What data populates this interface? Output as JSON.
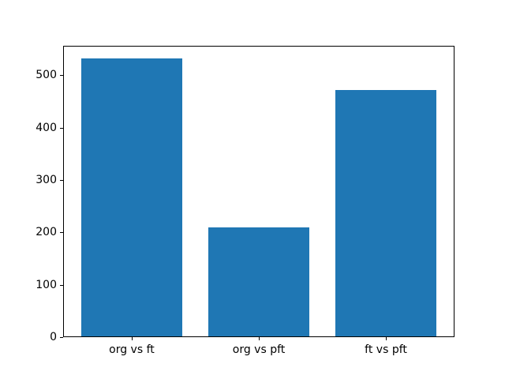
{
  "figure": {
    "background": "#ffffff"
  },
  "chart_data": {
    "type": "bar",
    "categories": [
      "org vs ft",
      "org vs pft",
      "ft vs pft"
    ],
    "values": [
      530,
      208,
      470
    ],
    "title": "",
    "xlabel": "",
    "ylabel": "",
    "ylim": [
      0,
      556
    ],
    "xlim": [
      -0.54,
      2.54
    ],
    "bar_width_units": 0.8,
    "yticks": [
      0,
      100,
      200,
      300,
      400,
      500
    ],
    "grid": false,
    "legend_position": "none",
    "bar_color": "#1f77b4",
    "axis_color": "#000000",
    "text_color": "#000000"
  }
}
